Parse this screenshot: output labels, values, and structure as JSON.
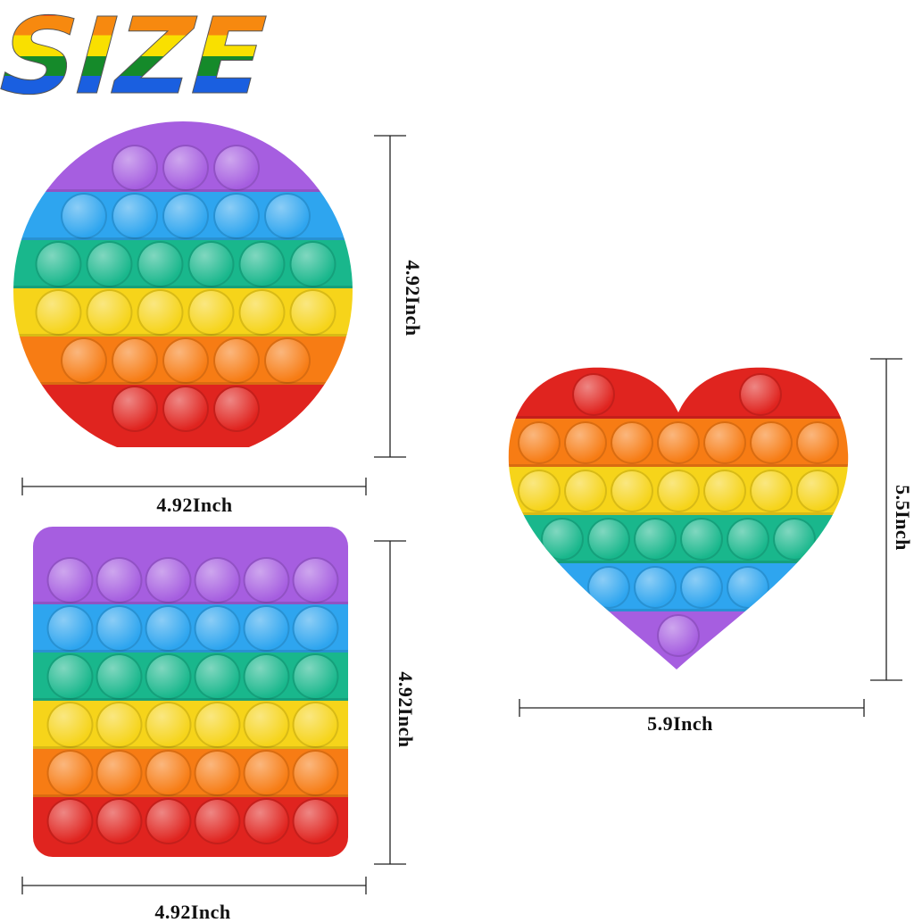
{
  "logo": {
    "text": "SIZE"
  },
  "colors": {
    "purple": "#a65ee0",
    "blue": "#2ea5ef",
    "green": "#19b78c",
    "yellow": "#f6d41a",
    "orange": "#f77c14",
    "red": "#e0241f"
  },
  "shapes": {
    "circle": {
      "width_label": "4.92Inch",
      "height_label": "4.92Inch",
      "rows": [
        [
          "purple",
          3
        ],
        [
          "blue",
          5
        ],
        [
          "green",
          6
        ],
        [
          "yellow",
          6
        ],
        [
          "orange",
          5
        ],
        [
          "red",
          3
        ]
      ]
    },
    "square": {
      "width_label": "4.92Inch",
      "height_label": "4.92Inch",
      "rows": [
        [
          "purple",
          6
        ],
        [
          "blue",
          6
        ],
        [
          "green",
          6
        ],
        [
          "yellow",
          6
        ],
        [
          "orange",
          6
        ],
        [
          "red",
          6
        ]
      ]
    },
    "heart": {
      "width_label": "5.9Inch",
      "height_label": "5.5Inch",
      "rows": [
        [
          "red",
          2
        ],
        [
          "orange",
          7
        ],
        [
          "yellow",
          7
        ],
        [
          "green",
          6
        ],
        [
          "blue",
          4
        ],
        [
          "purple",
          1
        ]
      ]
    }
  }
}
